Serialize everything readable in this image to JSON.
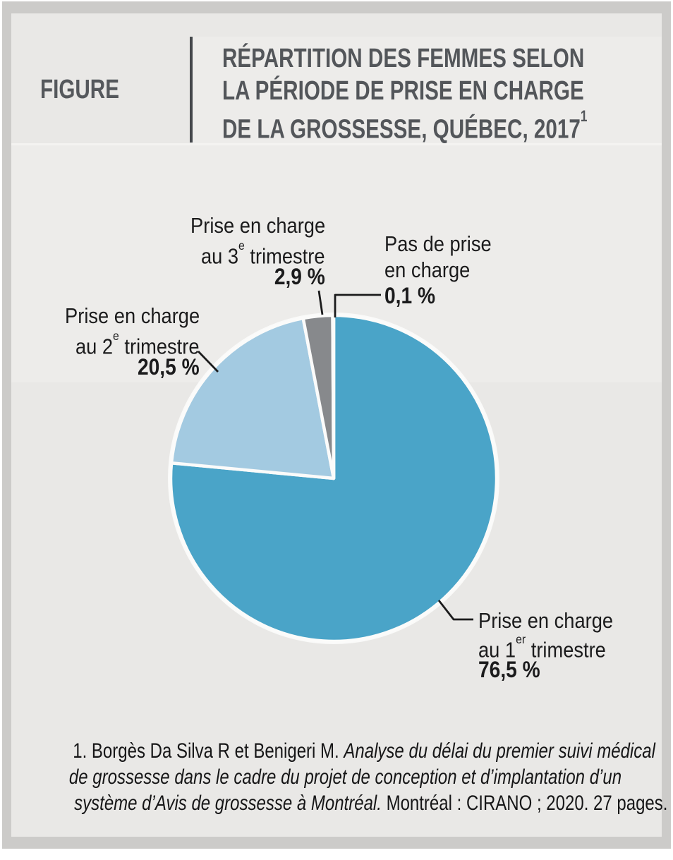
{
  "figure_tag": "FIGURE",
  "title": {
    "line1": "RÉPARTITION DES FEMMES SELON",
    "line2": "LA PÉRIODE DE PRISE EN CHARGE",
    "line3": "DE LA GROSSESSE, QUÉBEC, 2017",
    "line3_sup": "1"
  },
  "chart_data": {
    "type": "pie",
    "title": "Répartition des femmes selon la période de prise en charge de la grossesse, Québec, 2017",
    "unit": "%",
    "categories": [
      "Prise en charge au 1er trimestre",
      "Prise en charge au 2e trimestre",
      "Prise en charge au 3e trimestre",
      "Pas de prise en charge"
    ],
    "values": [
      76.5,
      20.5,
      2.9,
      0.1
    ],
    "value_labels": [
      "76,5 %",
      "20,5 %",
      "2,9 %",
      "0,1 %"
    ],
    "colors": [
      "#4AA4C8",
      "#A3CAE1",
      "#87898C",
      "#6F7174"
    ],
    "stroke_color": "#FBFBFA",
    "start_angle_deg": 0,
    "direction": "clockwise",
    "legend_position": "none"
  },
  "callouts": {
    "third": {
      "l1": "Prise en charge",
      "l2_pre": "au 3",
      "l2_sup": "e",
      "l2_post": " trimestre",
      "pct": "2,9 %"
    },
    "none": {
      "l1": "Pas de prise",
      "l2": "en charge",
      "pct": "0,1 %"
    },
    "second": {
      "l1": "Prise en charge",
      "l2_pre": "au 2",
      "l2_sup": "e",
      "l2_post": " trimestre",
      "pct": "20,5 %"
    },
    "first": {
      "l1": "Prise en charge",
      "l2_pre": "au 1",
      "l2_sup": "er",
      "l2_post": " trimestre",
      "pct": "76,5 %"
    }
  },
  "footnote": {
    "line1_roman": "1. Borgès Da Silva R et Benigeri M. ",
    "line1_italic": "Analyse du délai du premier suivi médical",
    "line2_italic": "de grossesse dans le cadre du projet de conception et d’implantation d’un",
    "line3_italic": "système d’Avis de grossesse à Montréal.",
    "line3_roman": " Montréal : CIRANO ; 2020. 27 pages."
  }
}
